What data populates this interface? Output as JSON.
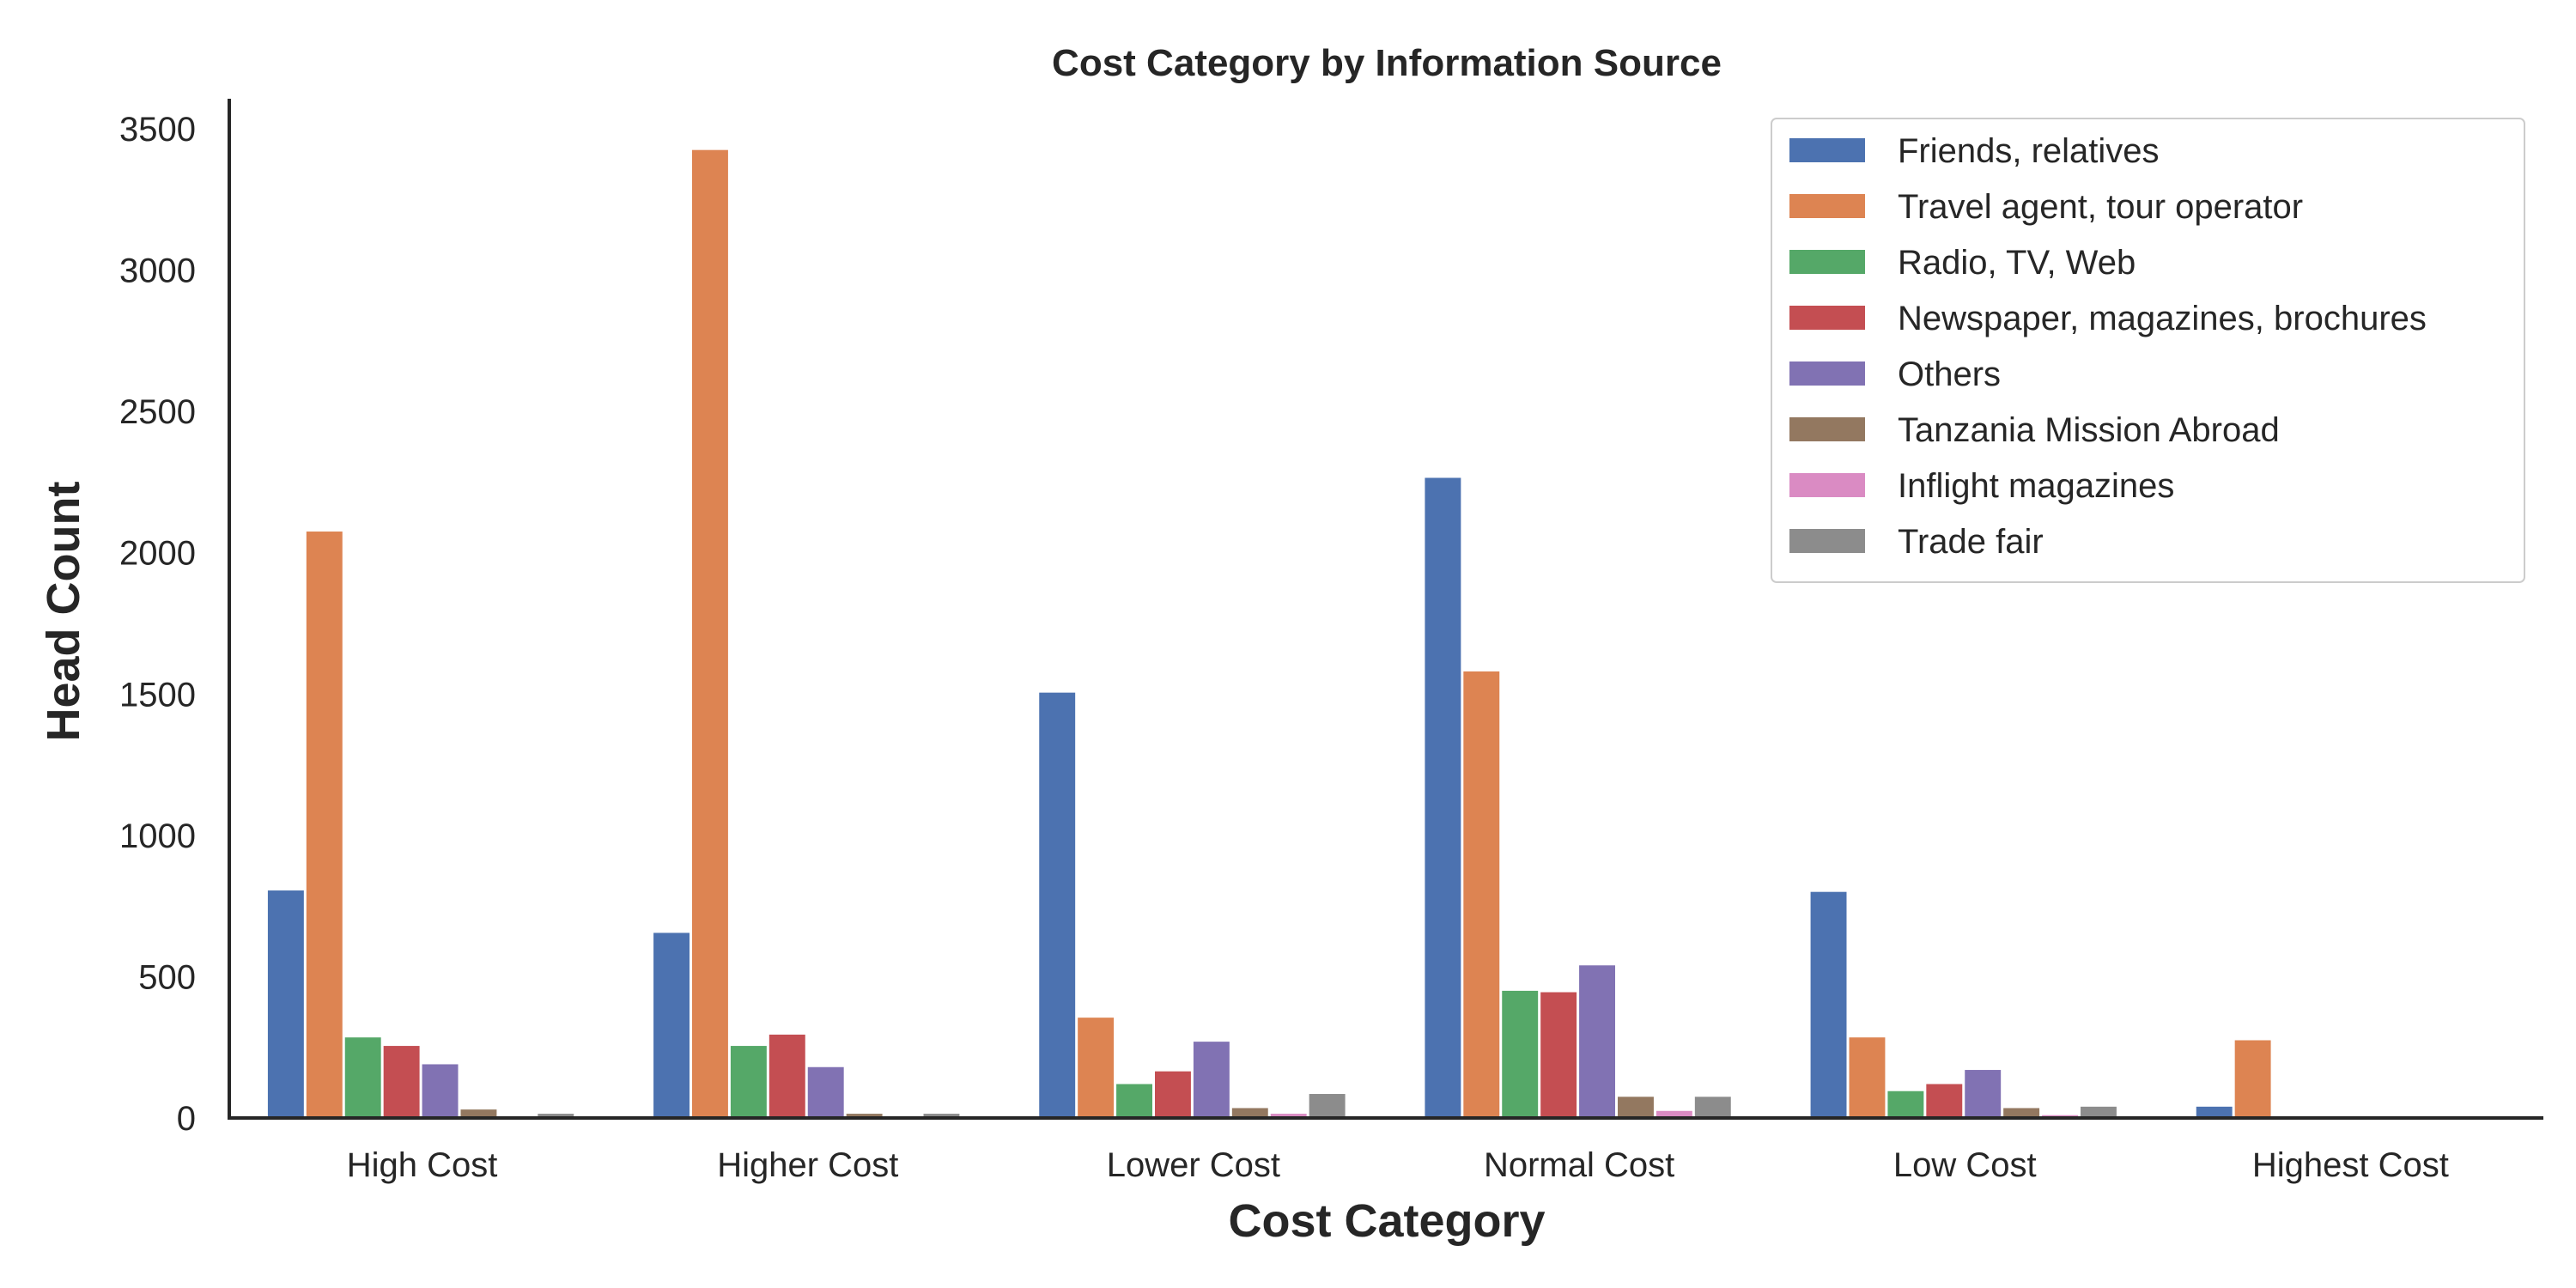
{
  "chart_data": {
    "type": "bar",
    "title": "Cost Category by Information Source",
    "xlabel": "Cost Category",
    "ylabel": "Head Count",
    "ylim": [
      0,
      3600
    ],
    "yticks": [
      0,
      500,
      1000,
      1500,
      2000,
      2500,
      3000,
      3500
    ],
    "grid": false,
    "legend_position": "top-right",
    "categories": [
      "High Cost",
      "Higher Cost",
      "Lower Cost",
      "Normal Cost",
      "Low Cost",
      "Highest Cost"
    ],
    "series": [
      {
        "name": "Friends, relatives",
        "color": "#4c72b0",
        "values": [
          805,
          655,
          1505,
          2265,
          800,
          40
        ]
      },
      {
        "name": "Travel agent, tour operator",
        "color": "#dd8452",
        "values": [
          2075,
          3425,
          355,
          1580,
          285,
          275
        ]
      },
      {
        "name": "Radio, TV, Web",
        "color": "#55a868",
        "values": [
          285,
          255,
          120,
          450,
          95,
          0
        ]
      },
      {
        "name": "Newspaper, magazines, brochures",
        "color": "#c44e52",
        "values": [
          255,
          295,
          165,
          445,
          120,
          0
        ]
      },
      {
        "name": "Others",
        "color": "#8172b3",
        "values": [
          190,
          180,
          270,
          540,
          170,
          0
        ]
      },
      {
        "name": "Tanzania Mission Abroad",
        "color": "#937860",
        "values": [
          30,
          15,
          35,
          75,
          35,
          0
        ]
      },
      {
        "name": "Inflight magazines",
        "color": "#da8bc3",
        "values": [
          5,
          5,
          15,
          25,
          10,
          0
        ]
      },
      {
        "name": "Trade fair",
        "color": "#8c8c8c",
        "values": [
          15,
          15,
          85,
          75,
          40,
          0
        ]
      }
    ]
  }
}
